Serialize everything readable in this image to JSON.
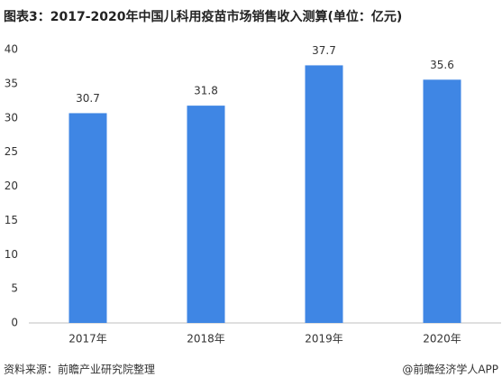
{
  "chart_data": {
    "type": "bar",
    "title": "图表3：2017-2020年中国儿科用疫苗市场销售收入测算(单位：亿元)",
    "categories": [
      "2017年",
      "2018年",
      "2019年",
      "2020年"
    ],
    "values": [
      30.7,
      31.8,
      37.7,
      35.6
    ],
    "color": "#3f86e4",
    "ylim": [
      0,
      40
    ],
    "yticks": [
      0,
      5,
      10,
      15,
      20,
      25,
      30,
      35,
      40
    ],
    "grid": false,
    "source": "资料来源：前瞻产业研究院整理",
    "credit": "@前瞻经济学人APP"
  }
}
